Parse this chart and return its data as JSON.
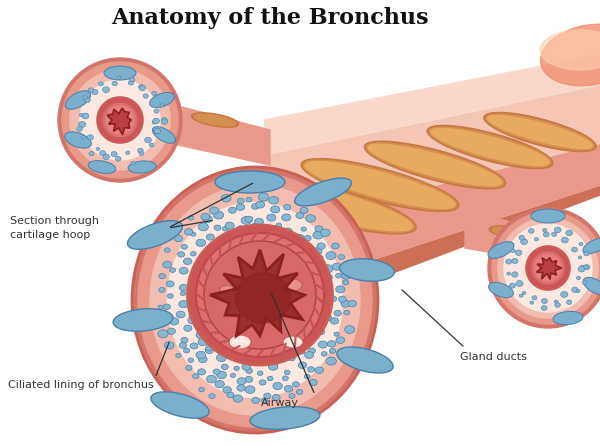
{
  "title": "Anatomy of the Bronchus",
  "title_fontsize": 16,
  "bg_color": "#ffffff",
  "labels": {
    "section": "Section through\ncartilage hoop",
    "ciliated": "Ciliated lining of bronchus",
    "airway": "Airway",
    "gland": "Gland ducts"
  },
  "colors": {
    "outer_ring_dark": "#d4756a",
    "outer_ring": "#e8998a",
    "mid_ring": "#f2bdb0",
    "inner_bg": "#fce8e0",
    "cartilage_border": "#c86055",
    "tube_outer_dark": "#cc7055",
    "tube_mid": "#e8998a",
    "tube_light": "#f5c5b5",
    "tube_highlight": "#fce0d5",
    "band_copper": "#c87840",
    "band_gold": "#d49050",
    "blue_gland": "#7ab0cc",
    "blue_gland_dark": "#4a80aa",
    "blue_dot": "#88b8d0",
    "airway_red": "#b84040",
    "airway_dark": "#8b2020",
    "airway_fill": "#993030",
    "mucosa_ring": "#cc5555",
    "mucosa_light": "#e07070",
    "line_color": "#333333",
    "white": "#ffffff",
    "orange_glow": "#f09070"
  }
}
